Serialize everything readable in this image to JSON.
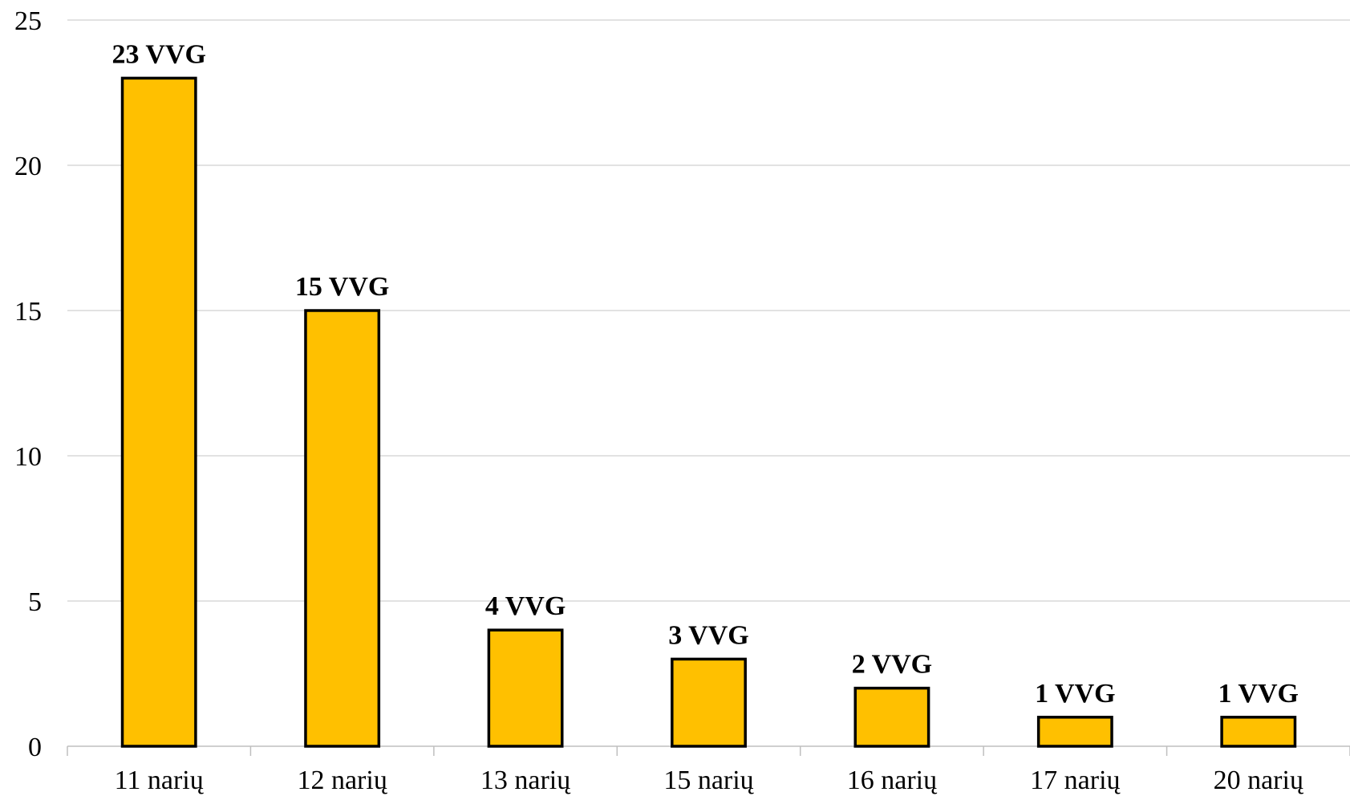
{
  "chart_data": {
    "type": "bar",
    "title": "",
    "xlabel": "",
    "ylabel": "",
    "categories": [
      "11 narių",
      "12 narių",
      "13 narių",
      "15 narių",
      "16 narių",
      "17 narių",
      "20 narių"
    ],
    "values": [
      23,
      15,
      4,
      3,
      2,
      1,
      1
    ],
    "data_labels": [
      "23 VVG",
      "15 VVG",
      "4 VVG",
      "3 VVG",
      "2 VVG",
      "1 VVG",
      "1 VVG"
    ],
    "ylim": [
      0,
      25
    ],
    "yticks": [
      0,
      5,
      10,
      15,
      20,
      25
    ],
    "grid": true,
    "legend": "none",
    "bar_color": "#FFC000",
    "bar_edge_color": "#000000"
  }
}
